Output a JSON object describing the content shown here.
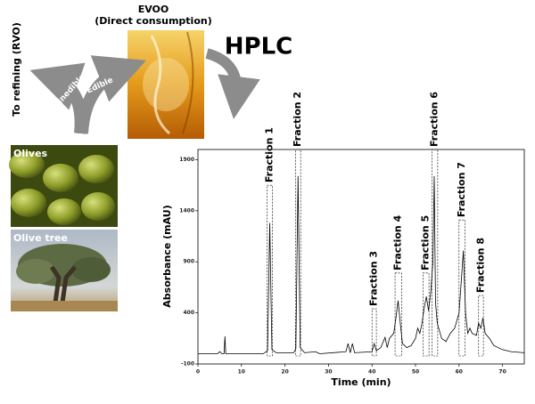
{
  "diagram": {
    "evoo": "EVOO",
    "evoo_note": "(Direct consumption)",
    "hplc": "HPLC",
    "refining": "To refining (RVO)",
    "inedible": "Inedible",
    "edible": "Edible",
    "olives": "Olives",
    "olive_tree": "Olive tree"
  },
  "chart_data": {
    "type": "line",
    "x_label": "Time (min)",
    "y_label": "Absorbance (mAU)",
    "xlim": [
      0,
      75
    ],
    "xticks": [
      0,
      10,
      20,
      30,
      40,
      50,
      60,
      70
    ],
    "ylim": [
      -100,
      2000
    ],
    "yticks": [
      -100,
      400,
      900,
      1400,
      1900
    ],
    "color": "#000000",
    "x": [
      0,
      4.5,
      5,
      5.5,
      6,
      6.2,
      6.4,
      15,
      16,
      16.5,
      17,
      18,
      22,
      22.5,
      23,
      23.5,
      24.5,
      27,
      28,
      34,
      34.5,
      35,
      35.5,
      36,
      40,
      40.5,
      41,
      42,
      43,
      43.5,
      44,
      45,
      45.5,
      46,
      46.5,
      47,
      48,
      49,
      50,
      50.5,
      51,
      51.5,
      52,
      52.5,
      53,
      53.5,
      54,
      54.3,
      54.6,
      55,
      56,
      57,
      58,
      59,
      60,
      60.5,
      61,
      61.5,
      62,
      62.5,
      63,
      64,
      64.5,
      65,
      65.5,
      66,
      67,
      68,
      70,
      72,
      75
    ],
    "values": [
      0,
      0,
      20,
      0,
      0,
      170,
      0,
      0,
      30,
      1280,
      40,
      10,
      10,
      50,
      1740,
      60,
      10,
      20,
      0,
      20,
      100,
      10,
      100,
      10,
      20,
      100,
      30,
      60,
      160,
      60,
      150,
      200,
      350,
      520,
      300,
      100,
      60,
      80,
      150,
      250,
      200,
      300,
      450,
      560,
      420,
      600,
      900,
      1740,
      500,
      300,
      150,
      120,
      200,
      250,
      400,
      700,
      1010,
      400,
      200,
      250,
      200,
      180,
      300,
      250,
      350,
      200,
      150,
      80,
      40,
      20,
      10
    ],
    "fractions": [
      {
        "label": "Fraction 1",
        "start": 15.9,
        "end": 17.1,
        "height": 1650
      },
      {
        "label": "Fraction 2",
        "start": 22.4,
        "end": 23.6,
        "height": 2000
      },
      {
        "label": "Fraction 3",
        "start": 40.0,
        "end": 41.0,
        "height": 440
      },
      {
        "label": "Fraction 4",
        "start": 45.3,
        "end": 46.8,
        "height": 790
      },
      {
        "label": "Fraction 5",
        "start": 51.7,
        "end": 53.1,
        "height": 790
      },
      {
        "label": "Fraction 6",
        "start": 53.8,
        "end": 55.1,
        "height": 2000
      },
      {
        "label": "Fraction 7",
        "start": 60.0,
        "end": 61.4,
        "height": 1310
      },
      {
        "label": "Fraction 8",
        "start": 64.5,
        "end": 65.6,
        "height": 570
      }
    ]
  }
}
